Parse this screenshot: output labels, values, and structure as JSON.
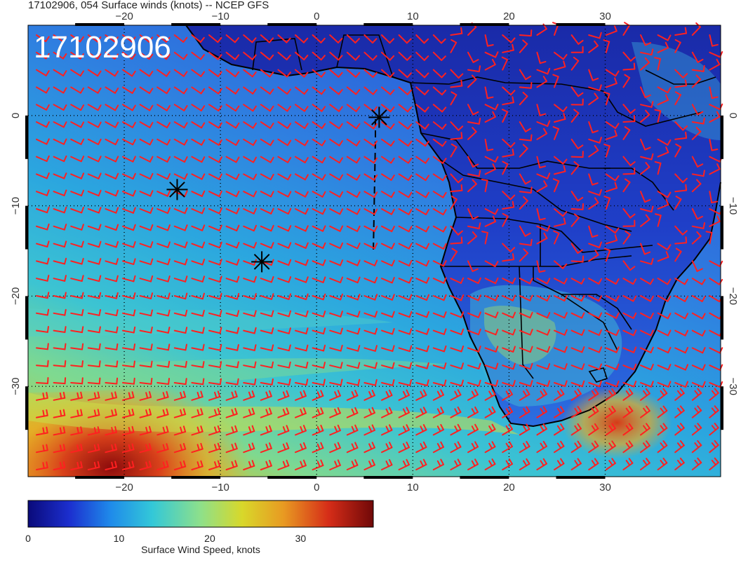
{
  "header": {
    "title": "17102906, 054 Surface winds (knots) -- NCEP GFS"
  },
  "map": {
    "stamp": "17102906",
    "lon_ticks": [
      -20,
      -10,
      0,
      10,
      20,
      30
    ],
    "lat_ticks": [
      0,
      -10,
      -20,
      -30
    ],
    "lon_range": [
      -30,
      42
    ],
    "lat_range": [
      -40,
      10
    ],
    "gridlines": true,
    "barb_color": "#ff2020",
    "coast_color": "#000000",
    "markers": [
      {
        "symbol": "asterisk",
        "lon": 6.5,
        "lat": -0.2
      },
      {
        "symbol": "asterisk",
        "lon": -14.5,
        "lat": -8.2
      },
      {
        "symbol": "asterisk",
        "lon": -5.7,
        "lat": -16.2
      }
    ]
  },
  "colorbar": {
    "label": "Surface Wind Speed, knots",
    "min": 0,
    "max": 38,
    "ticks": [
      0,
      10,
      20,
      30
    ],
    "colors": [
      "#0a0a7a",
      "#1c2fcf",
      "#1f8bea",
      "#33c8d8",
      "#8ee08a",
      "#d8d82a",
      "#e89a22",
      "#d62d18",
      "#700808"
    ]
  }
}
